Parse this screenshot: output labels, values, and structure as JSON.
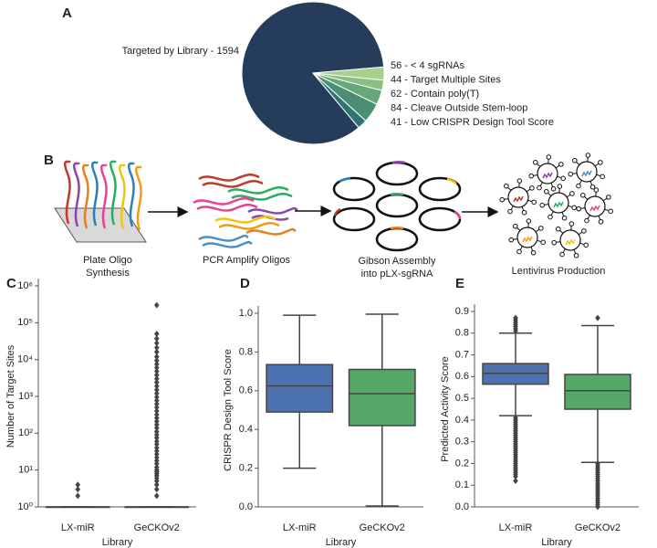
{
  "chart_data": [
    {
      "type": "pie",
      "panel": "A",
      "labels": [
        "Targeted by Library - 1594",
        "56 - < 4 sgRNAs",
        "44 - Target Multiple Sites",
        "62 - Contain poly(T)",
        "84 - Cleave Outside Stem-loop",
        "41 - Low CRISPR Design Tool Score"
      ],
      "values": [
        1594,
        56,
        44,
        62,
        84,
        41
      ],
      "colors": [
        "#253d5b",
        "#a8d08d",
        "#88c082",
        "#67a87a",
        "#4a8f74",
        "#2f7470"
      ]
    },
    {
      "type": "box",
      "panel": "C",
      "yscale": "log",
      "y_label": "Number of Target Sites",
      "x_label": "Library",
      "categories": [
        "LX-miR",
        "GeCKOv2"
      ],
      "ylim": [
        1,
        1000000
      ],
      "yticks": [
        {
          "value": 1,
          "label": "10⁰"
        },
        {
          "value": 10,
          "label": "10¹"
        },
        {
          "value": 100,
          "label": "10²"
        },
        {
          "value": 1000,
          "label": "10³"
        },
        {
          "value": 10000,
          "label": "10⁴"
        },
        {
          "value": 100000,
          "label": "10⁵"
        },
        {
          "value": 1000000,
          "label": "10⁶"
        }
      ],
      "boxes": [
        {
          "color": "#4c72b0",
          "min": 1,
          "q1": 1,
          "median": 1,
          "q3": 1,
          "max": 1,
          "outliers": [
            2,
            3,
            4
          ]
        },
        {
          "color": "#55a868",
          "min": 1,
          "q1": 1,
          "median": 1,
          "q3": 1,
          "max": 1,
          "outliers": [
            2,
            3,
            4,
            5,
            6,
            7,
            8,
            9,
            10,
            12,
            15,
            18,
            22,
            27,
            33,
            40,
            50,
            60,
            75,
            90,
            110,
            140,
            170,
            210,
            260,
            320,
            400,
            500,
            620,
            770,
            950,
            1200,
            1500,
            1900,
            2400,
            3000,
            3800,
            4800,
            6000,
            7500,
            9400,
            12000,
            16000,
            21000,
            28000,
            37000,
            50000,
            300000
          ]
        }
      ]
    },
    {
      "type": "box",
      "panel": "D",
      "y_label": "CRISPR Design Tool Score",
      "x_label": "Library",
      "categories": [
        "LX-miR",
        "GeCKOv2"
      ],
      "ylim": [
        0,
        1
      ],
      "yticks": [
        {
          "value": 0,
          "label": "0.0"
        },
        0.2,
        0.4,
        0.6,
        0.8,
        {
          "value": 1,
          "label": "1.0"
        }
      ],
      "boxes": [
        {
          "color": "#4c72b0",
          "min": 0.2,
          "q1": 0.49,
          "median": 0.625,
          "q3": 0.735,
          "max": 0.99,
          "outliers": []
        },
        {
          "color": "#55a868",
          "min": 0.005,
          "q1": 0.42,
          "median": 0.585,
          "q3": 0.71,
          "max": 0.995,
          "outliers": []
        }
      ]
    },
    {
      "type": "box",
      "panel": "E",
      "y_label": "Predicted Activity Score",
      "x_label": "Library",
      "categories": [
        "LX-miR",
        "GeCKOv2"
      ],
      "ylim": [
        0,
        0.9
      ],
      "yticks": [
        {
          "value": 0,
          "label": "0.0"
        },
        0.1,
        0.2,
        0.3,
        0.4,
        0.5,
        0.6,
        0.7,
        0.8,
        0.9
      ],
      "boxes": [
        {
          "color": "#4c72b0",
          "min": 0.42,
          "q1": 0.565,
          "median": 0.615,
          "q3": 0.66,
          "max": 0.8,
          "outliers": [
            0.41,
            0.4,
            0.39,
            0.38,
            0.37,
            0.36,
            0.35,
            0.34,
            0.33,
            0.32,
            0.31,
            0.3,
            0.29,
            0.28,
            0.27,
            0.26,
            0.25,
            0.24,
            0.23,
            0.22,
            0.21,
            0.2,
            0.19,
            0.18,
            0.17,
            0.16,
            0.15,
            0.14,
            0.12,
            0.81,
            0.82,
            0.83,
            0.84,
            0.85,
            0.86,
            0.87
          ]
        },
        {
          "color": "#55a868",
          "min": 0.205,
          "q1": 0.45,
          "median": 0.535,
          "q3": 0.61,
          "max": 0.835,
          "outliers": [
            0.2,
            0.19,
            0.18,
            0.17,
            0.16,
            0.15,
            0.14,
            0.13,
            0.12,
            0.11,
            0.1,
            0.09,
            0.08,
            0.07,
            0.06,
            0.05,
            0.04,
            0.03,
            0.02,
            0.01,
            0.0,
            0.87
          ]
        }
      ]
    }
  ],
  "diagram": {
    "panel": "B",
    "steps": [
      {
        "lines": [
          "Plate Oligo",
          "Synthesis"
        ]
      },
      {
        "lines": [
          "PCR Amplify Oligos"
        ]
      },
      {
        "lines": [
          "Gibson Assembly",
          "into pLX-sgRNA"
        ]
      },
      {
        "lines": [
          "Lentivirus Production"
        ]
      }
    ]
  }
}
